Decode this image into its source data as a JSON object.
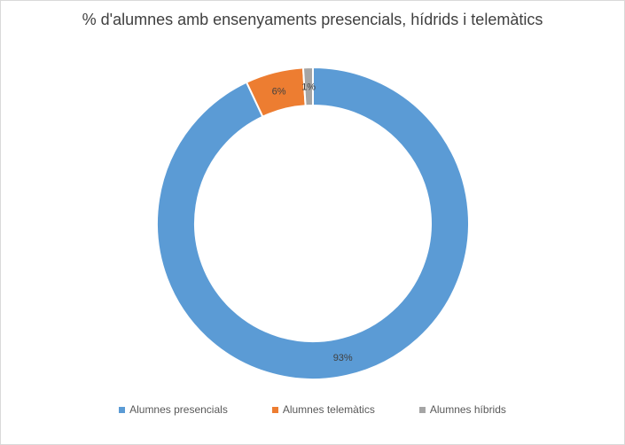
{
  "chart_data": {
    "type": "pie",
    "title": "% d'alumnes amb ensenyaments presencials, hídrids i telemàtics",
    "categories": [
      "Alumnes presencials",
      "Alumnes telemàtics",
      "Alumnes híbrids"
    ],
    "values": [
      93,
      6,
      1
    ],
    "labels": [
      "93%",
      "6%",
      "1%"
    ],
    "colors": [
      "#5b9bd5",
      "#ed7d31",
      "#a5a5a5"
    ],
    "legend_position": "bottom"
  }
}
